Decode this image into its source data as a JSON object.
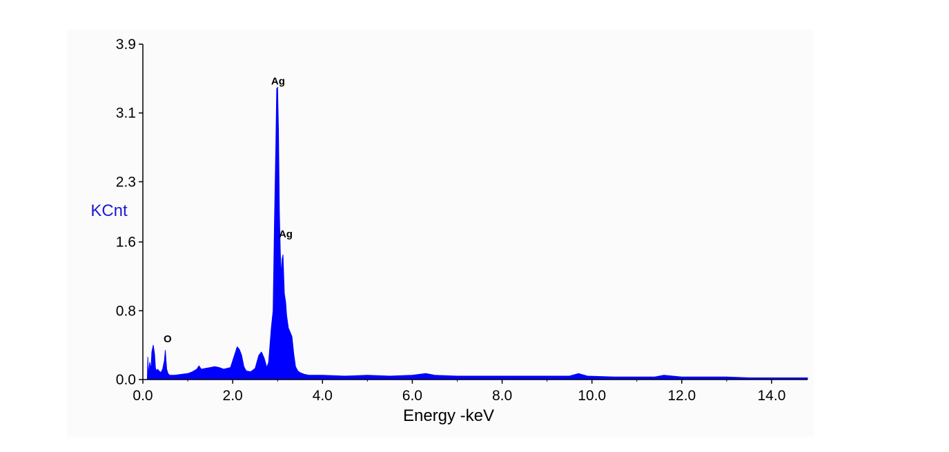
{
  "chart_data": {
    "type": "area",
    "title": "",
    "xlabel": "Energy -keV",
    "ylabel": "KCnt",
    "xlim": [
      0.0,
      14.8
    ],
    "ylim": [
      0.0,
      3.9
    ],
    "x_ticks": [
      {
        "value": 0.0,
        "label": "0.0"
      },
      {
        "value": 2.0,
        "label": "2.0"
      },
      {
        "value": 4.0,
        "label": "4.0"
      },
      {
        "value": 6.0,
        "label": "6.0"
      },
      {
        "value": 8.0,
        "label": "8.0"
      },
      {
        "value": 10.0,
        "label": "10.0"
      },
      {
        "value": 12.0,
        "label": "12.0"
      },
      {
        "value": 14.0,
        "label": "14.0"
      }
    ],
    "y_ticks": [
      {
        "value": 0.0,
        "label": "0.0"
      },
      {
        "value": 0.8,
        "label": "0.8"
      },
      {
        "value": 1.6,
        "label": "1.6"
      },
      {
        "value": 2.3,
        "label": "2.3"
      },
      {
        "value": 3.1,
        "label": "3.1"
      },
      {
        "value": 3.9,
        "label": "3.9"
      }
    ],
    "grid": false,
    "series_color": "#0000ff",
    "axis_title_color": "#1a1ad6",
    "series": [
      {
        "x": [
          0.1,
          0.11,
          0.12,
          0.15,
          0.18,
          0.2,
          0.23,
          0.26,
          0.28,
          0.3,
          0.33,
          0.36,
          0.4,
          0.44,
          0.48,
          0.5,
          0.53,
          0.56,
          0.6,
          0.7,
          0.85,
          1.0,
          1.1,
          1.2,
          1.25,
          1.3,
          1.4,
          1.5,
          1.6,
          1.7,
          1.8,
          1.95,
          2.05,
          2.1,
          2.15,
          2.2,
          2.25,
          2.3,
          2.4,
          2.5,
          2.58,
          2.64,
          2.7,
          2.76,
          2.8,
          2.86,
          2.9,
          2.93,
          2.96,
          2.98,
          3.0,
          3.02,
          3.04,
          3.06,
          3.08,
          3.1,
          3.12,
          3.15,
          3.18,
          3.2,
          3.24,
          3.28,
          3.32,
          3.36,
          3.4,
          3.45,
          3.5,
          3.6,
          3.7,
          3.8,
          3.9,
          4.0,
          4.5,
          5.0,
          5.5,
          6.0,
          6.3,
          6.5,
          7.0,
          7.5,
          8.0,
          8.5,
          9.0,
          9.5,
          9.7,
          9.9,
          10.5,
          11.0,
          11.4,
          11.6,
          12.0,
          12.5,
          13.0,
          13.5,
          14.0,
          14.5,
          14.8
        ],
        "y": [
          0.02,
          0.26,
          0.05,
          0.2,
          0.12,
          0.32,
          0.4,
          0.3,
          0.14,
          0.1,
          0.12,
          0.1,
          0.08,
          0.12,
          0.22,
          0.34,
          0.12,
          0.07,
          0.05,
          0.05,
          0.06,
          0.07,
          0.09,
          0.12,
          0.16,
          0.12,
          0.13,
          0.14,
          0.15,
          0.14,
          0.12,
          0.14,
          0.3,
          0.38,
          0.35,
          0.28,
          0.15,
          0.1,
          0.09,
          0.13,
          0.28,
          0.32,
          0.25,
          0.14,
          0.2,
          0.6,
          0.8,
          1.8,
          2.7,
          3.38,
          3.4,
          2.9,
          1.95,
          1.5,
          1.2,
          1.4,
          1.45,
          1.0,
          0.9,
          0.75,
          0.6,
          0.55,
          0.5,
          0.3,
          0.15,
          0.1,
          0.08,
          0.06,
          0.05,
          0.05,
          0.05,
          0.05,
          0.04,
          0.05,
          0.04,
          0.05,
          0.07,
          0.05,
          0.04,
          0.04,
          0.04,
          0.04,
          0.04,
          0.04,
          0.07,
          0.04,
          0.03,
          0.03,
          0.03,
          0.05,
          0.03,
          0.03,
          0.03,
          0.02,
          0.02,
          0.02,
          0.02
        ]
      }
    ],
    "annotations": [
      {
        "text": "Ag",
        "x": 2.98,
        "y": 3.4
      },
      {
        "text": "Ag",
        "x": 3.15,
        "y": 1.62
      },
      {
        "text": "O",
        "x": 0.52,
        "y": 0.4
      }
    ]
  }
}
